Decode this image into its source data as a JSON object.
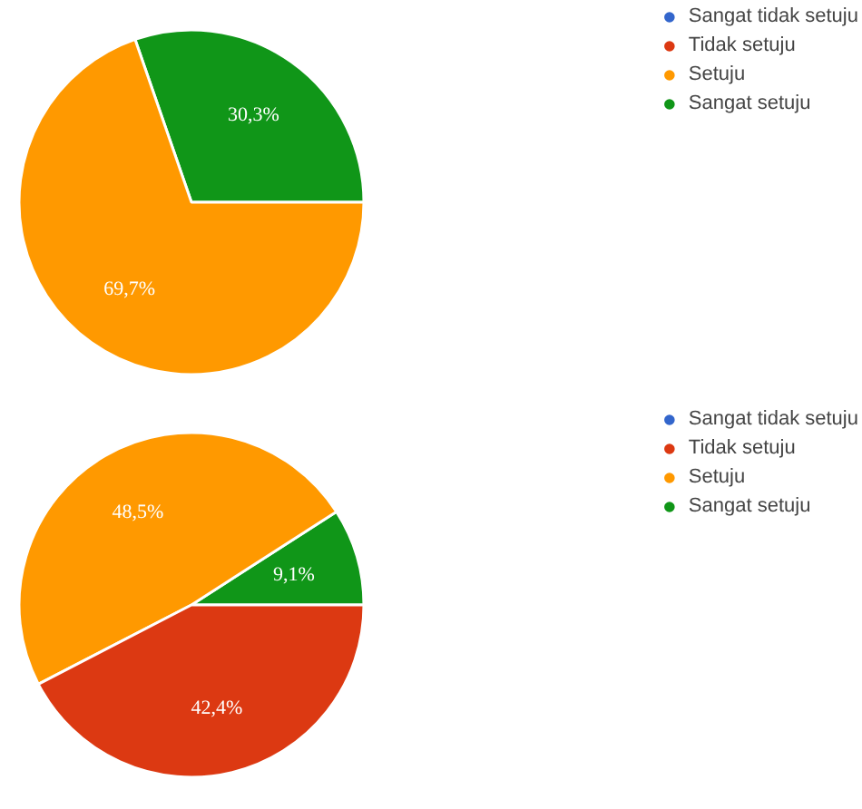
{
  "chart_data": [
    {
      "type": "pie",
      "categories": [
        "Sangat tidak setuju",
        "Tidak setuju",
        "Setuju",
        "Sangat setuju"
      ],
      "values": [
        0,
        0,
        69.7,
        30.3
      ],
      "value_labels": [
        null,
        null,
        "69,7%",
        "30,3%"
      ],
      "colors": [
        "#3366cc",
        "#dc3912",
        "#ff9900",
        "#109618"
      ],
      "legend": "top right"
    },
    {
      "type": "pie",
      "categories": [
        "Sangat tidak setuju",
        "Tidak setuju",
        "Setuju",
        "Sangat setuju"
      ],
      "values": [
        0,
        42.4,
        48.5,
        9.1
      ],
      "value_labels": [
        null,
        "42,4%",
        "48,5%",
        "9,1%"
      ],
      "colors": [
        "#3366cc",
        "#dc3912",
        "#ff9900",
        "#109618"
      ],
      "legend": "top right"
    }
  ]
}
